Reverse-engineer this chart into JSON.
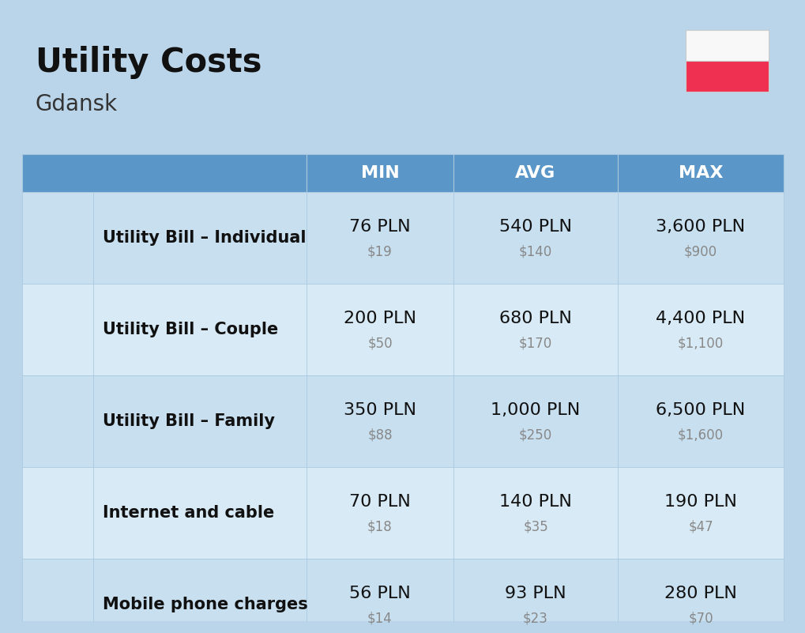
{
  "title": "Utility Costs",
  "subtitle": "Gdansk",
  "background_color": "#bad5e9",
  "header_bg_color": "#5b96c8",
  "header_text_color": "#ffffff",
  "row_bg_color_1": "#c8dff0",
  "row_bg_color_2": "#d8eaf5",
  "cell_border_color": "#a8c8de",
  "col_headers": [
    "MIN",
    "AVG",
    "MAX"
  ],
  "rows": [
    {
      "label": "Utility Bill – Individual",
      "min_pln": "76 PLN",
      "min_usd": "$19",
      "avg_pln": "540 PLN",
      "avg_usd": "$140",
      "max_pln": "3,600 PLN",
      "max_usd": "$900"
    },
    {
      "label": "Utility Bill – Couple",
      "min_pln": "200 PLN",
      "min_usd": "$50",
      "avg_pln": "680 PLN",
      "avg_usd": "$170",
      "max_pln": "4,400 PLN",
      "max_usd": "$1,100"
    },
    {
      "label": "Utility Bill – Family",
      "min_pln": "350 PLN",
      "min_usd": "$88",
      "avg_pln": "1,000 PLN",
      "avg_usd": "$250",
      "max_pln": "6,500 PLN",
      "max_usd": "$1,600"
    },
    {
      "label": "Internet and cable",
      "min_pln": "70 PLN",
      "min_usd": "$18",
      "avg_pln": "140 PLN",
      "avg_usd": "$35",
      "max_pln": "190 PLN",
      "max_usd": "$47"
    },
    {
      "label": "Mobile phone charges",
      "min_pln": "56 PLN",
      "min_usd": "$14",
      "avg_pln": "93 PLN",
      "avg_usd": "$23",
      "max_pln": "280 PLN",
      "max_usd": "$70"
    }
  ],
  "title_fontsize": 30,
  "subtitle_fontsize": 20,
  "header_fontsize": 16,
  "label_fontsize": 15,
  "value_fontsize": 16,
  "usd_fontsize": 12,
  "flag_white": "#f8f8f8",
  "flag_red": "#f03050"
}
